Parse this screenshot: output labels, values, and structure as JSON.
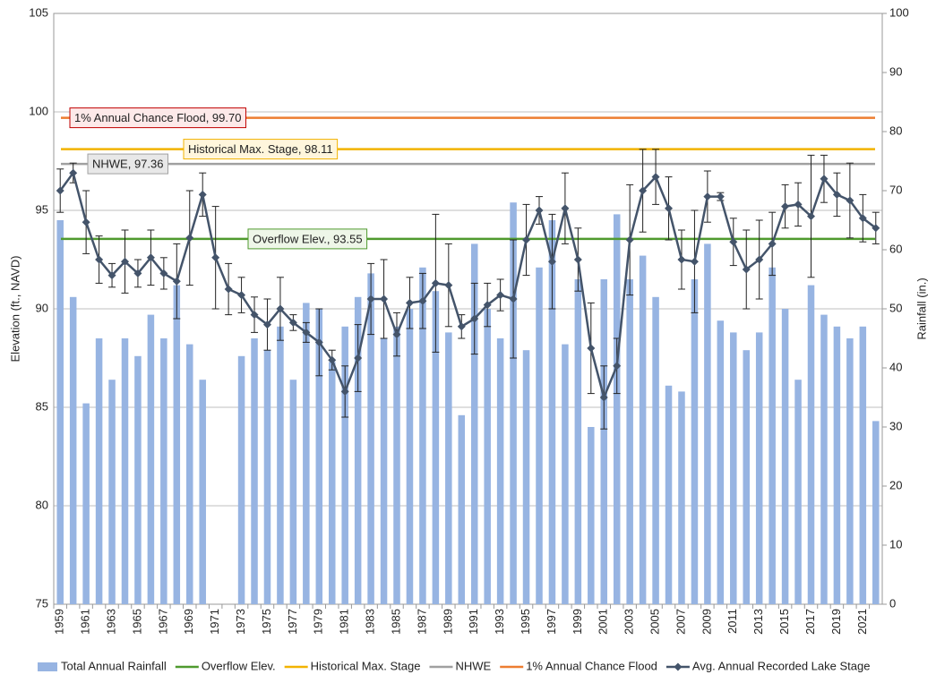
{
  "chart_data": {
    "type": "combo",
    "y_label": "Elevation (ft., NAVD)",
    "y2_label": "Rainfall (in.)",
    "categories": [
      "1959",
      null,
      "1961",
      null,
      "1963",
      null,
      "1965",
      null,
      "1967",
      null,
      "1969",
      null,
      "1971",
      null,
      "1973",
      null,
      "1975",
      null,
      "1977",
      null,
      "1979",
      null,
      "1981",
      null,
      "1983",
      null,
      "1985",
      null,
      "1987",
      null,
      "1989",
      null,
      "1991",
      null,
      "1993",
      null,
      "1995",
      null,
      "1997",
      null,
      "1999",
      null,
      "2001",
      null,
      "2003",
      null,
      "2005",
      null,
      "2007",
      null,
      "2009",
      null,
      "2011",
      null,
      "2013",
      null,
      "2015",
      null,
      "2017",
      null,
      "2019",
      null,
      "2021",
      null
    ],
    "ylim": [
      75,
      105
    ],
    "yticks": [
      75,
      80,
      85,
      90,
      95,
      100,
      105
    ],
    "y2lim": [
      0,
      100
    ],
    "y2ticks": [
      0,
      10,
      20,
      30,
      40,
      50,
      60,
      70,
      80,
      90,
      100
    ],
    "grid": true,
    "series": [
      {
        "name": "Total Annual Rainfall",
        "type": "bar",
        "axis": "y2",
        "color": "#97b4e2",
        "values": [
          65,
          52,
          34,
          45,
          38,
          45,
          42,
          49,
          45,
          54,
          44,
          38,
          null,
          null,
          42,
          45,
          43,
          47,
          38,
          51,
          50,
          41,
          47,
          52,
          56,
          45,
          47,
          50,
          57,
          53,
          46,
          32,
          61,
          50,
          45,
          68,
          43,
          57,
          65,
          44,
          55,
          30,
          55,
          66,
          55,
          59,
          52,
          37,
          36,
          55,
          61,
          48,
          46,
          43,
          46,
          57,
          50,
          38,
          54,
          49,
          47,
          45,
          47,
          31
        ]
      },
      {
        "name": "Avg. Annual Recorded Lake Stage",
        "type": "line",
        "color": "#44546a",
        "values": [
          96.0,
          96.9,
          94.4,
          92.5,
          91.7,
          92.4,
          91.8,
          92.6,
          91.8,
          91.4,
          93.6,
          95.8,
          92.6,
          91.0,
          90.7,
          89.7,
          89.2,
          90.0,
          89.3,
          88.8,
          88.3,
          87.4,
          85.8,
          87.5,
          90.5,
          90.5,
          88.7,
          90.3,
          90.4,
          91.3,
          91.2,
          89.1,
          89.5,
          90.2,
          90.7,
          90.5,
          93.5,
          95.0,
          92.4,
          95.1,
          92.5,
          88.0,
          85.5,
          87.1,
          93.5,
          96.0,
          96.7,
          95.1,
          92.5,
          92.4,
          95.7,
          95.7,
          93.4,
          92.0,
          92.5,
          93.3,
          95.2,
          95.3,
          94.7,
          96.6,
          95.8,
          95.5,
          94.6,
          94.1
        ],
        "errors": [
          1.1,
          0.5,
          1.6,
          1.2,
          0.6,
          1.6,
          0.7,
          1.4,
          0.8,
          1.9,
          2.4,
          1.1,
          2.6,
          1.3,
          0.9,
          0.9,
          1.3,
          1.6,
          0.4,
          0.5,
          1.7,
          0.5,
          1.3,
          1.7,
          1.8,
          2.0,
          1.1,
          1.3,
          1.4,
          3.5,
          2.1,
          0.6,
          1.8,
          1.1,
          0.8,
          3.0,
          1.8,
          0.7,
          2.4,
          1.8,
          1.6,
          2.3,
          1.6,
          1.4,
          2.8,
          2.1,
          1.4,
          1.6,
          1.5,
          2.6,
          1.3,
          0.2,
          1.2,
          2.0,
          2.0,
          1.6,
          1.1,
          1.1,
          3.1,
          1.2,
          1.1,
          1.9,
          1.2,
          0.8
        ]
      }
    ],
    "reference_lines": [
      {
        "name": "Overflow Elev.",
        "color": "#4f9a2e",
        "value": 93.55,
        "label": "Overflow Elev., 93.55"
      },
      {
        "name": "Historical Max. Stage",
        "color": "#f2b300",
        "value": 98.11,
        "label": "Historical Max. Stage, 98.11"
      },
      {
        "name": "NHWE",
        "color": "#a0a0a0",
        "value": 97.36,
        "label": "NHWE, 97.36"
      },
      {
        "name": "1% Annual Chance Flood",
        "color": "#ed7d31",
        "value": 99.7,
        "label": "1% Annual Chance Flood, 99.70"
      }
    ]
  }
}
